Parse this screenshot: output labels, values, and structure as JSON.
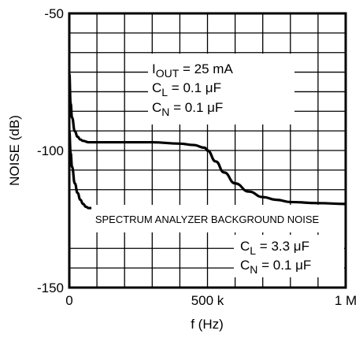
{
  "chart_data": {
    "type": "line",
    "title": "",
    "xlabel": "f (Hz)",
    "ylabel": "NOISE (dB)",
    "xlim": [
      0,
      1000000
    ],
    "ylim": [
      -150,
      -50
    ],
    "x_ticks": [
      {
        "value": 0,
        "label": "0"
      },
      {
        "value": 500000,
        "label": "500 k"
      },
      {
        "value": 1000000,
        "label": "1 M"
      }
    ],
    "y_ticks": [
      {
        "value": -50,
        "label": "-50"
      },
      {
        "value": -100,
        "label": "-100"
      },
      {
        "value": -150,
        "label": "-150"
      }
    ],
    "grid": true,
    "series": [
      {
        "x": [
          0,
          5000,
          10000,
          20000,
          30000,
          40000,
          50000,
          70000,
          100000,
          200000,
          300000,
          400000,
          450000,
          490000,
          500000,
          530000,
          560000,
          600000,
          650000,
          700000,
          750000,
          800000,
          900000,
          1000000
        ],
        "y": [
          -72,
          -83,
          -88,
          -93,
          -95,
          -96,
          -96.5,
          -97,
          -97,
          -97,
          -97,
          -97.5,
          -98,
          -99,
          -100,
          -104,
          -108,
          -112,
          -115,
          -117,
          -118,
          -118.8,
          -119.2,
          -119.5
        ]
      },
      {
        "x": [
          0,
          5000,
          10000,
          20000,
          30000,
          40000,
          50000,
          60000,
          70000,
          80000
        ],
        "y": [
          -93,
          -101,
          -106,
          -112,
          -115.5,
          -118,
          -119.5,
          -120.5,
          -121,
          -121
        ]
      }
    ],
    "annotations": {
      "band_label": "SPECTRUM ANALYZER BACKGROUND NOISE",
      "curve1": {
        "iout_prefix": "I",
        "iout_sub": "OUT",
        "iout_value": " = 25 mA",
        "cl_prefix": "C",
        "cl_sub": "L",
        "cl_value": " = 0.1 μF",
        "cn_prefix": "C",
        "cn_sub": "N",
        "cn_value": " = 0.1 μF"
      },
      "curve2": {
        "cl_prefix": "C",
        "cl_sub": "L",
        "cl_value": " = 3.3 μF",
        "cn_prefix": "C",
        "cn_sub": "N",
        "cn_value": " = 0.1 μF"
      }
    }
  }
}
